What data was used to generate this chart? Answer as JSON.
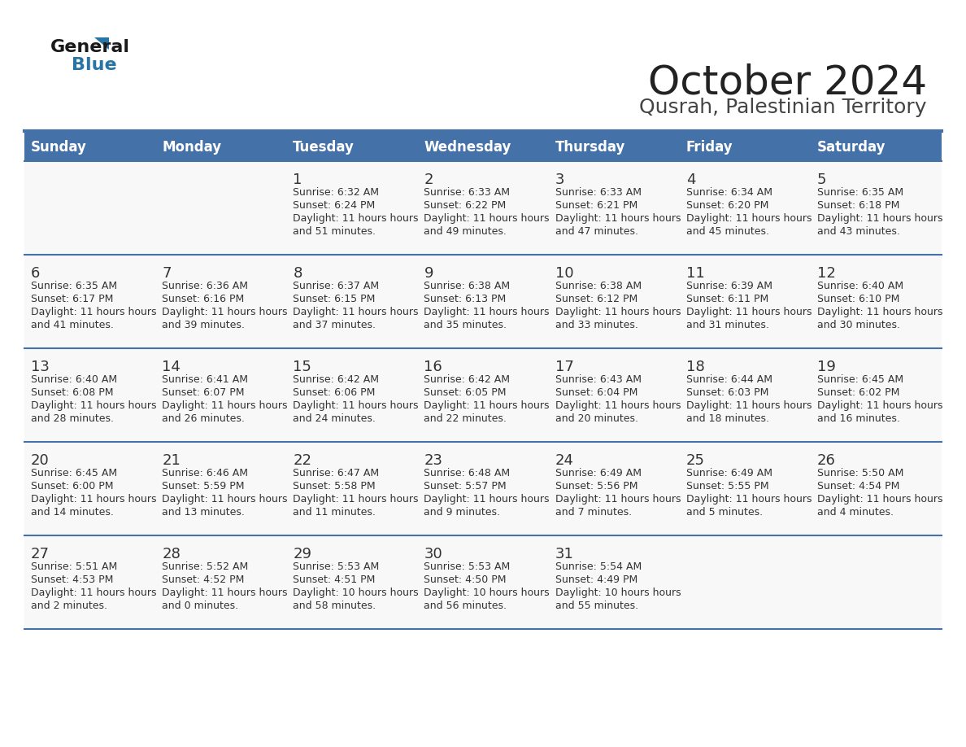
{
  "title": "October 2024",
  "subtitle": "Qusrah, Palestinian Territory",
  "header_bg": "#4472a8",
  "header_text_color": "#ffffff",
  "cell_bg_light": "#f2f2f2",
  "cell_bg_white": "#ffffff",
  "day_number_color": "#333333",
  "cell_text_color": "#333333",
  "border_color": "#4472a8",
  "days_of_week": [
    "Sunday",
    "Monday",
    "Tuesday",
    "Wednesday",
    "Thursday",
    "Friday",
    "Saturday"
  ],
  "weeks": [
    [
      {
        "day": "",
        "sunrise": "",
        "sunset": "",
        "daylight": ""
      },
      {
        "day": "",
        "sunrise": "",
        "sunset": "",
        "daylight": ""
      },
      {
        "day": "1",
        "sunrise": "6:32 AM",
        "sunset": "6:24 PM",
        "daylight": "11 hours and 51 minutes."
      },
      {
        "day": "2",
        "sunrise": "6:33 AM",
        "sunset": "6:22 PM",
        "daylight": "11 hours and 49 minutes."
      },
      {
        "day": "3",
        "sunrise": "6:33 AM",
        "sunset": "6:21 PM",
        "daylight": "11 hours and 47 minutes."
      },
      {
        "day": "4",
        "sunrise": "6:34 AM",
        "sunset": "6:20 PM",
        "daylight": "11 hours and 45 minutes."
      },
      {
        "day": "5",
        "sunrise": "6:35 AM",
        "sunset": "6:18 PM",
        "daylight": "11 hours and 43 minutes."
      }
    ],
    [
      {
        "day": "6",
        "sunrise": "6:35 AM",
        "sunset": "6:17 PM",
        "daylight": "11 hours and 41 minutes."
      },
      {
        "day": "7",
        "sunrise": "6:36 AM",
        "sunset": "6:16 PM",
        "daylight": "11 hours and 39 minutes."
      },
      {
        "day": "8",
        "sunrise": "6:37 AM",
        "sunset": "6:15 PM",
        "daylight": "11 hours and 37 minutes."
      },
      {
        "day": "9",
        "sunrise": "6:38 AM",
        "sunset": "6:13 PM",
        "daylight": "11 hours and 35 minutes."
      },
      {
        "day": "10",
        "sunrise": "6:38 AM",
        "sunset": "6:12 PM",
        "daylight": "11 hours and 33 minutes."
      },
      {
        "day": "11",
        "sunrise": "6:39 AM",
        "sunset": "6:11 PM",
        "daylight": "11 hours and 31 minutes."
      },
      {
        "day": "12",
        "sunrise": "6:40 AM",
        "sunset": "6:10 PM",
        "daylight": "11 hours and 30 minutes."
      }
    ],
    [
      {
        "day": "13",
        "sunrise": "6:40 AM",
        "sunset": "6:08 PM",
        "daylight": "11 hours and 28 minutes."
      },
      {
        "day": "14",
        "sunrise": "6:41 AM",
        "sunset": "6:07 PM",
        "daylight": "11 hours and 26 minutes."
      },
      {
        "day": "15",
        "sunrise": "6:42 AM",
        "sunset": "6:06 PM",
        "daylight": "11 hours and 24 minutes."
      },
      {
        "day": "16",
        "sunrise": "6:42 AM",
        "sunset": "6:05 PM",
        "daylight": "11 hours and 22 minutes."
      },
      {
        "day": "17",
        "sunrise": "6:43 AM",
        "sunset": "6:04 PM",
        "daylight": "11 hours and 20 minutes."
      },
      {
        "day": "18",
        "sunrise": "6:44 AM",
        "sunset": "6:03 PM",
        "daylight": "11 hours and 18 minutes."
      },
      {
        "day": "19",
        "sunrise": "6:45 AM",
        "sunset": "6:02 PM",
        "daylight": "11 hours and 16 minutes."
      }
    ],
    [
      {
        "day": "20",
        "sunrise": "6:45 AM",
        "sunset": "6:00 PM",
        "daylight": "11 hours and 14 minutes."
      },
      {
        "day": "21",
        "sunrise": "6:46 AM",
        "sunset": "5:59 PM",
        "daylight": "11 hours and 13 minutes."
      },
      {
        "day": "22",
        "sunrise": "6:47 AM",
        "sunset": "5:58 PM",
        "daylight": "11 hours and 11 minutes."
      },
      {
        "day": "23",
        "sunrise": "6:48 AM",
        "sunset": "5:57 PM",
        "daylight": "11 hours and 9 minutes."
      },
      {
        "day": "24",
        "sunrise": "6:49 AM",
        "sunset": "5:56 PM",
        "daylight": "11 hours and 7 minutes."
      },
      {
        "day": "25",
        "sunrise": "6:49 AM",
        "sunset": "5:55 PM",
        "daylight": "11 hours and 5 minutes."
      },
      {
        "day": "26",
        "sunrise": "5:50 AM",
        "sunset": "4:54 PM",
        "daylight": "11 hours and 4 minutes."
      }
    ],
    [
      {
        "day": "27",
        "sunrise": "5:51 AM",
        "sunset": "4:53 PM",
        "daylight": "11 hours and 2 minutes."
      },
      {
        "day": "28",
        "sunrise": "5:52 AM",
        "sunset": "4:52 PM",
        "daylight": "11 hours and 0 minutes."
      },
      {
        "day": "29",
        "sunrise": "5:53 AM",
        "sunset": "4:51 PM",
        "daylight": "10 hours and 58 minutes."
      },
      {
        "day": "30",
        "sunrise": "5:53 AM",
        "sunset": "4:50 PM",
        "daylight": "10 hours and 56 minutes."
      },
      {
        "day": "31",
        "sunrise": "5:54 AM",
        "sunset": "4:49 PM",
        "daylight": "10 hours and 55 minutes."
      },
      {
        "day": "",
        "sunrise": "",
        "sunset": "",
        "daylight": ""
      },
      {
        "day": "",
        "sunrise": "",
        "sunset": "",
        "daylight": ""
      }
    ]
  ]
}
